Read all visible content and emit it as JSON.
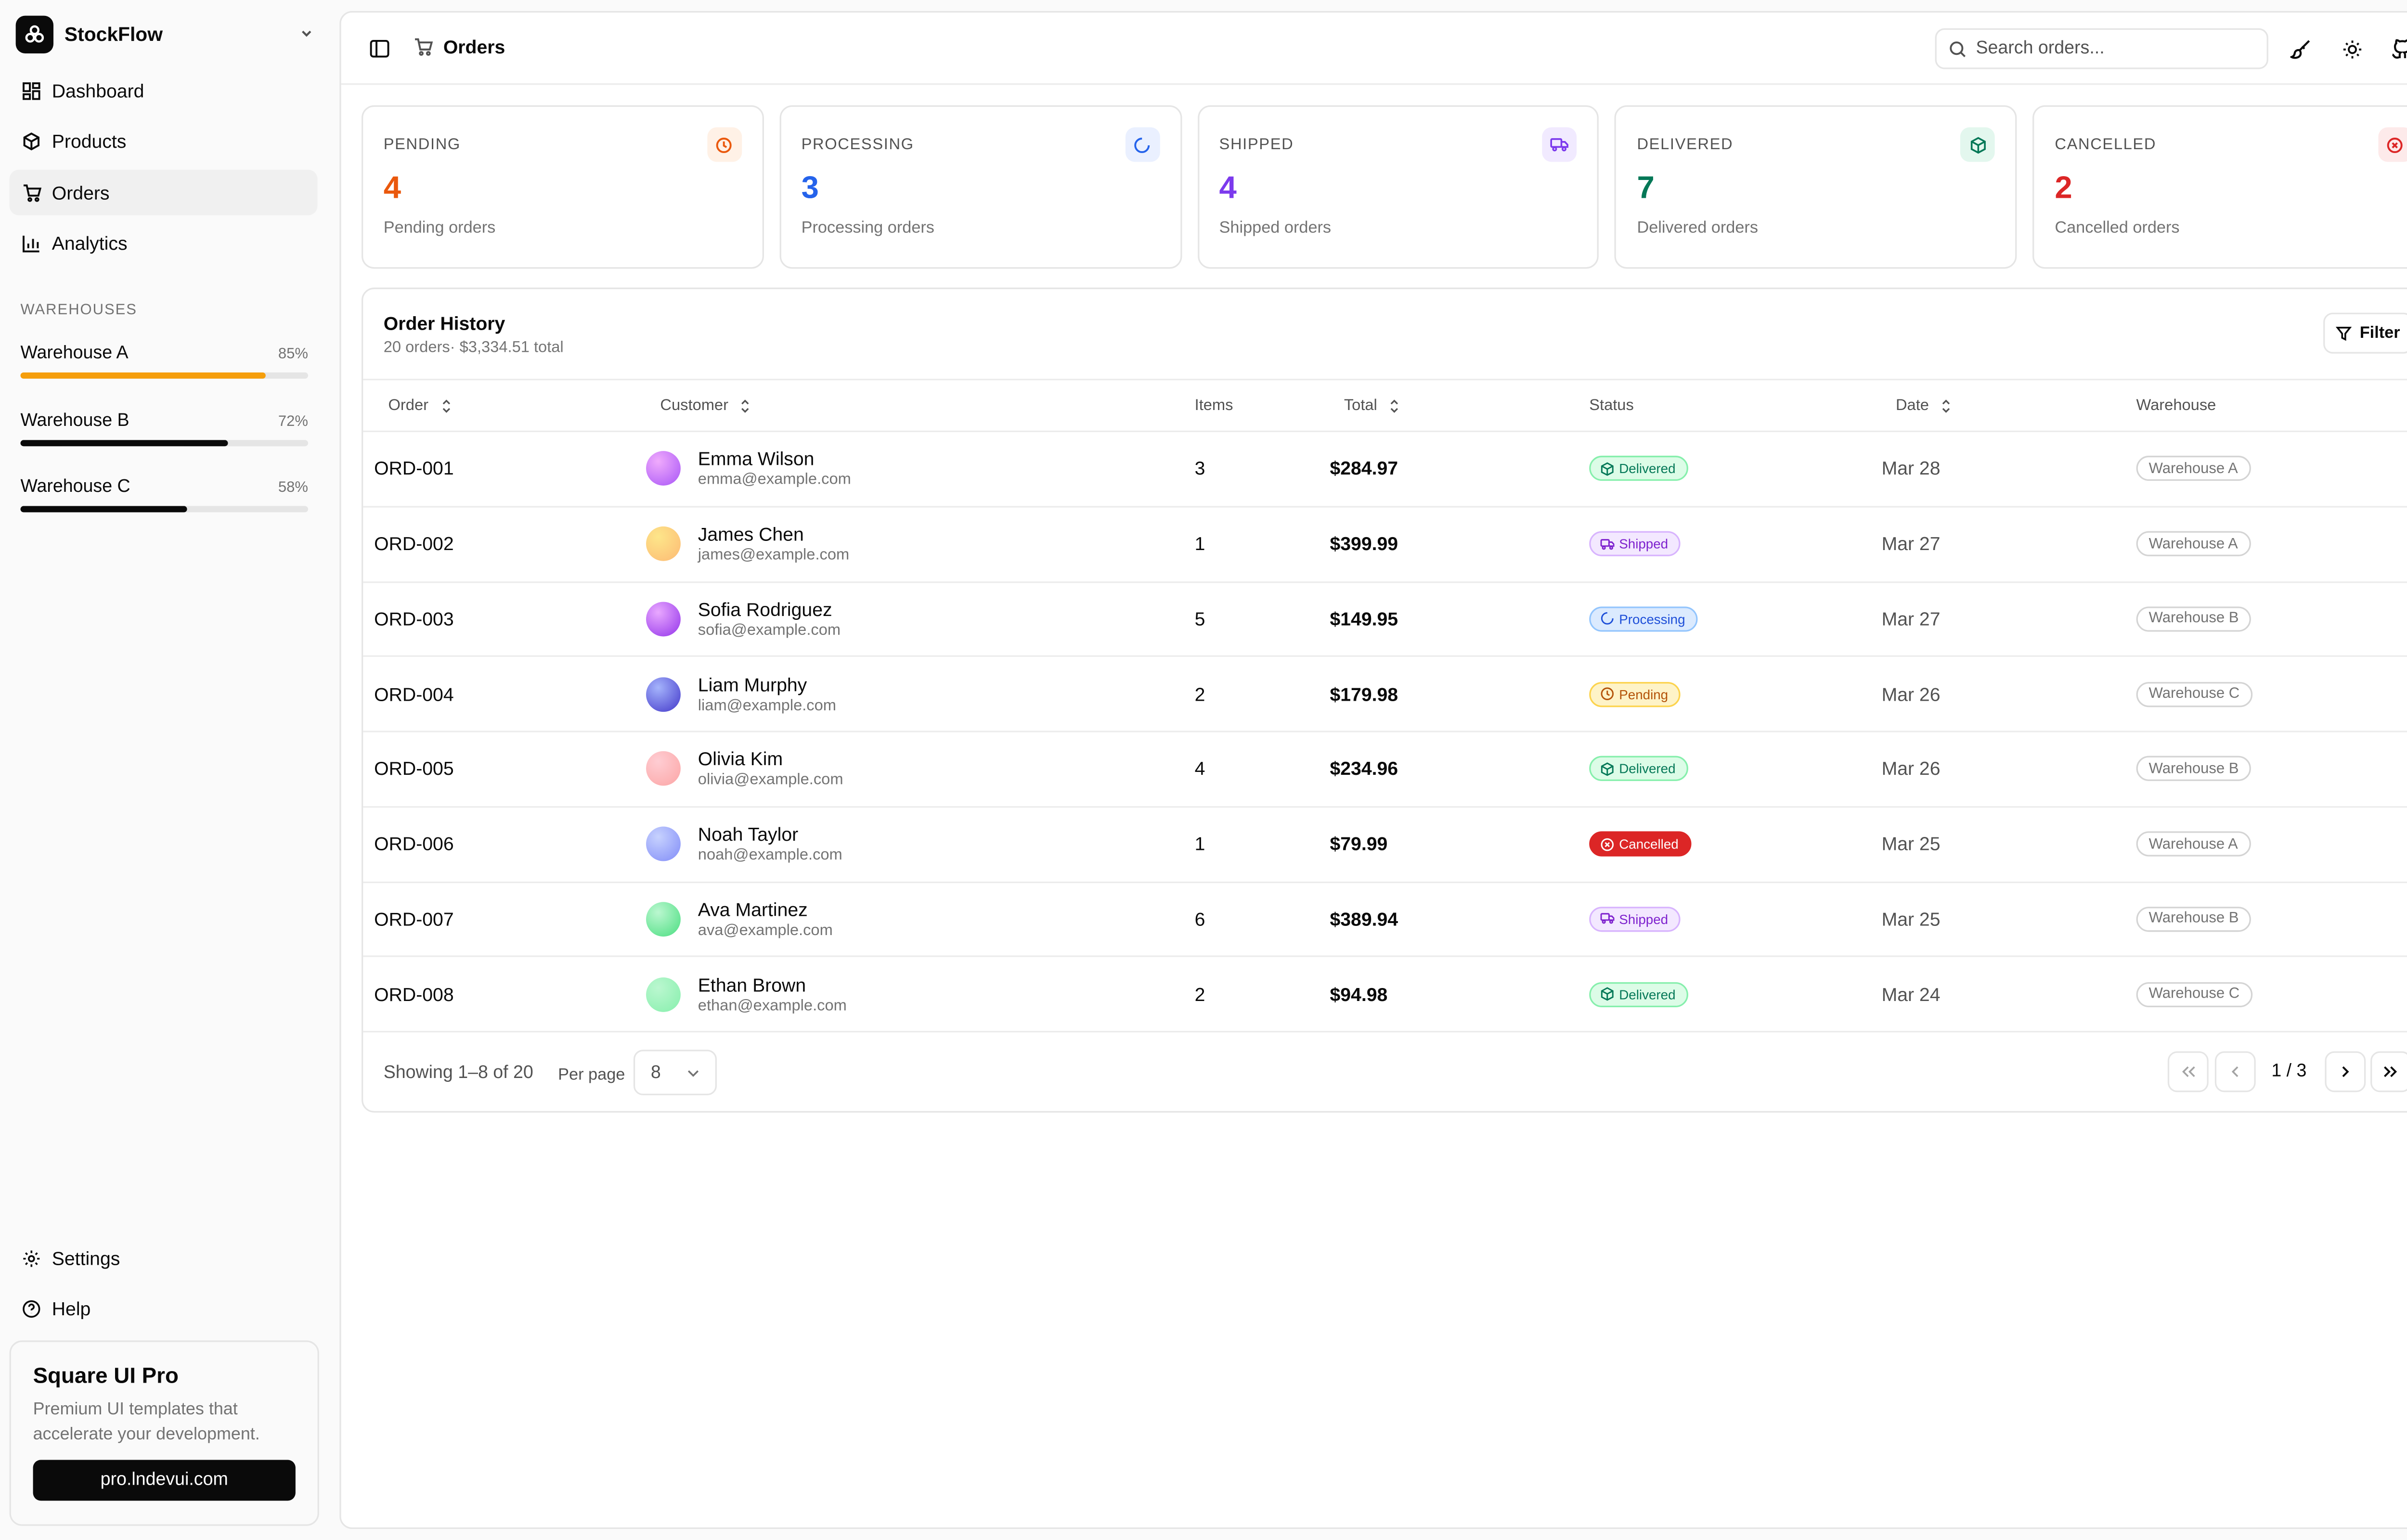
{
  "brand": {
    "name": "StockFlow"
  },
  "nav": [
    {
      "label": "Dashboard",
      "icon": "dashboard-icon"
    },
    {
      "label": "Products",
      "icon": "package-icon"
    },
    {
      "label": "Orders",
      "icon": "cart-icon",
      "active": true
    },
    {
      "label": "Analytics",
      "icon": "bar-chart-icon"
    }
  ],
  "warehouses": {
    "label": "WAREHOUSES",
    "items": [
      {
        "name": "Warehouse A",
        "pct": "85%",
        "value": 85,
        "color": "#f59e0b"
      },
      {
        "name": "Warehouse B",
        "pct": "72%",
        "value": 72,
        "color": "#0a0a0a"
      },
      {
        "name": "Warehouse C",
        "pct": "58%",
        "value": 58,
        "color": "#0a0a0a"
      }
    ]
  },
  "bottom_nav": [
    {
      "label": "Settings",
      "icon": "gear-icon"
    },
    {
      "label": "Help",
      "icon": "help-icon"
    }
  ],
  "promo": {
    "title": "Square UI Pro",
    "text": "Premium UI templates that accelerate your development.",
    "button": "pro.lndevui.com"
  },
  "topbar": {
    "title": "Orders",
    "search_placeholder": "Search orders..."
  },
  "stats": [
    {
      "label": "PENDING",
      "value": "4",
      "sub": "Pending orders",
      "color": "#ea580c",
      "bg": "#fff1e6",
      "icon": "clock-icon"
    },
    {
      "label": "PROCESSING",
      "value": "3",
      "sub": "Processing orders",
      "color": "#2563eb",
      "bg": "#eaf0ff",
      "icon": "loader-icon"
    },
    {
      "label": "SHIPPED",
      "value": "4",
      "sub": "Shipped orders",
      "color": "#7c3aed",
      "bg": "#f1eaff",
      "icon": "truck-icon"
    },
    {
      "label": "DELIVERED",
      "value": "7",
      "sub": "Delivered orders",
      "color": "#047857",
      "bg": "#e3f7ee",
      "icon": "package-check-icon"
    },
    {
      "label": "CANCELLED",
      "value": "2",
      "sub": "Cancelled orders",
      "color": "#dc2626",
      "bg": "#fdeaea",
      "icon": "x-circle-icon"
    }
  ],
  "table": {
    "title": "Order History",
    "subtitle": "20 orders· $3,334.51 total",
    "filter_label": "Filter",
    "columns": [
      "Order",
      "Customer",
      "Items",
      "Total",
      "Status",
      "Date",
      "Warehouse"
    ],
    "rows": [
      {
        "order": "ORD-001",
        "name": "Emma Wilson",
        "email": "emma@example.com",
        "items": "3",
        "total": "$284.97",
        "status": "Delivered",
        "date": "Mar 28",
        "warehouse": "Warehouse A",
        "avatar": [
          "#f0abfc",
          "#a855f7"
        ]
      },
      {
        "order": "ORD-002",
        "name": "James Chen",
        "email": "james@example.com",
        "items": "1",
        "total": "$399.99",
        "status": "Shipped",
        "date": "Mar 27",
        "warehouse": "Warehouse A",
        "avatar": [
          "#fde68a",
          "#fdba74"
        ]
      },
      {
        "order": "ORD-003",
        "name": "Sofia Rodriguez",
        "email": "sofia@example.com",
        "items": "5",
        "total": "$149.95",
        "status": "Processing",
        "date": "Mar 27",
        "warehouse": "Warehouse B",
        "avatar": [
          "#e9a8ff",
          "#9333ea"
        ]
      },
      {
        "order": "ORD-004",
        "name": "Liam Murphy",
        "email": "liam@example.com",
        "items": "2",
        "total": "$179.98",
        "status": "Pending",
        "date": "Mar 26",
        "warehouse": "Warehouse C",
        "avatar": [
          "#a5b4fc",
          "#4338ca"
        ]
      },
      {
        "order": "ORD-005",
        "name": "Olivia Kim",
        "email": "olivia@example.com",
        "items": "4",
        "total": "$234.96",
        "status": "Delivered",
        "date": "Mar 26",
        "warehouse": "Warehouse B",
        "avatar": [
          "#fecdd3",
          "#fca5a5"
        ]
      },
      {
        "order": "ORD-006",
        "name": "Noah Taylor",
        "email": "noah@example.com",
        "items": "1",
        "total": "$79.99",
        "status": "Cancelled",
        "date": "Mar 25",
        "warehouse": "Warehouse A",
        "avatar": [
          "#c7d2fe",
          "#818cf8"
        ]
      },
      {
        "order": "ORD-007",
        "name": "Ava Martinez",
        "email": "ava@example.com",
        "items": "6",
        "total": "$389.94",
        "status": "Shipped",
        "date": "Mar 25",
        "warehouse": "Warehouse B",
        "avatar": [
          "#bbf7d0",
          "#4ade80"
        ]
      },
      {
        "order": "ORD-008",
        "name": "Ethan Brown",
        "email": "ethan@example.com",
        "items": "2",
        "total": "$94.98",
        "status": "Delivered",
        "date": "Mar 24",
        "warehouse": "Warehouse C",
        "avatar": [
          "#bbf7d0",
          "#86efac"
        ]
      }
    ]
  },
  "pagination": {
    "showing": "Showing 1–8 of 20",
    "per_page_label": "Per page",
    "per_page_value": "8",
    "page_label": "1 / 3"
  }
}
